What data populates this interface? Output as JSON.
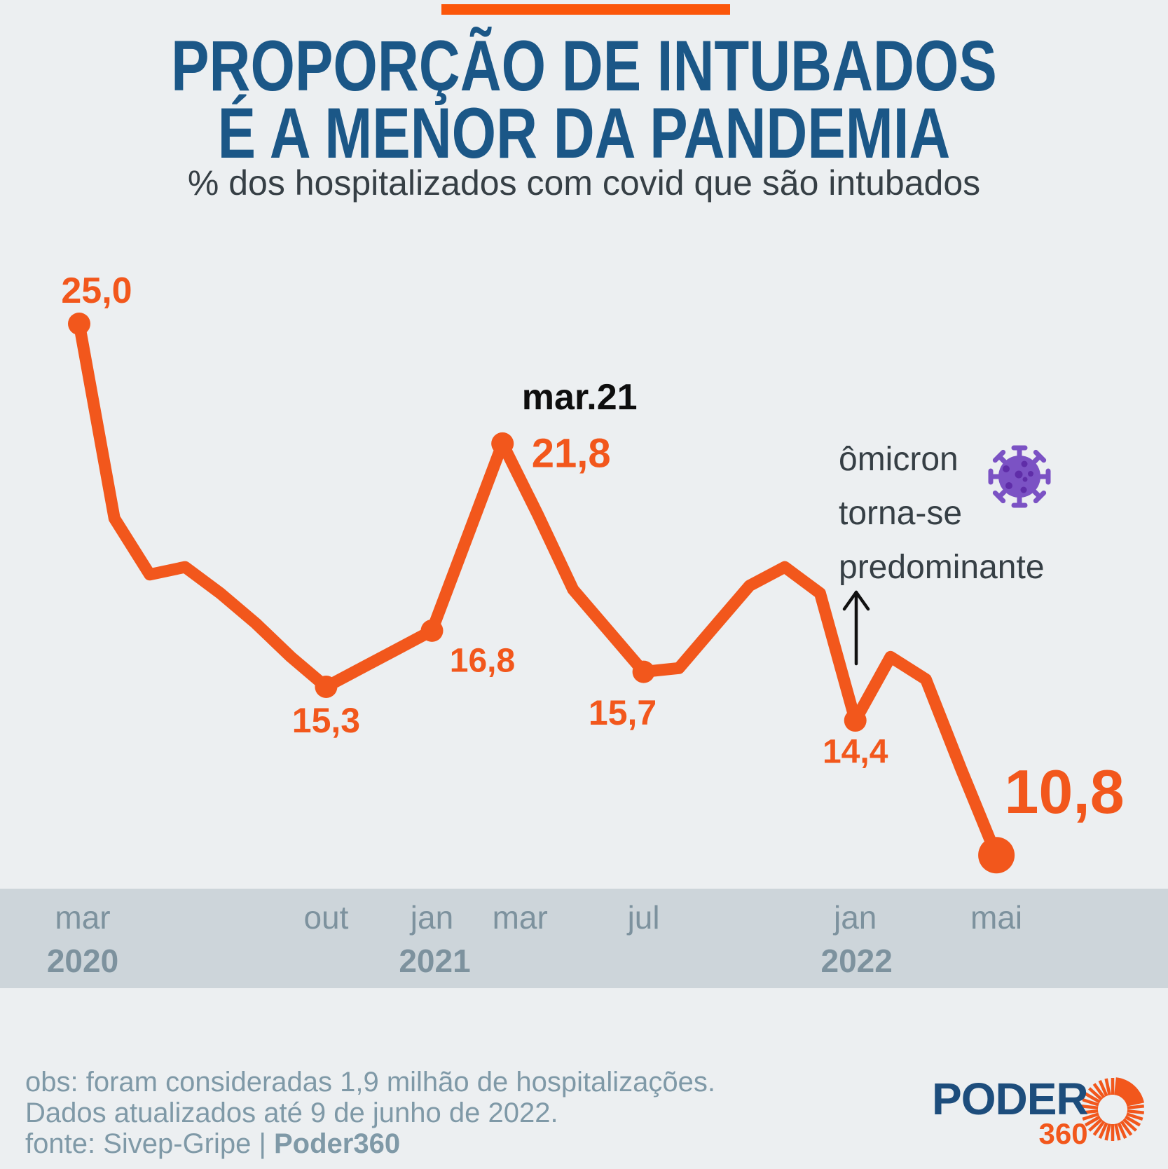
{
  "chart_data": {
    "type": "line",
    "title_lines": [
      "PROPORÇÃO DE INTUBADOS",
      "É A MENOR DA PANDEMIA"
    ],
    "subtitle": "% dos hospitalizados com covid que são intubados",
    "ylim": [
      10.8,
      25.0
    ],
    "x": [
      "mar/2020",
      "abr/2020",
      "mai/2020",
      "jun/2020",
      "jul/2020",
      "ago/2020",
      "set/2020",
      "out/2020",
      "nov/2020",
      "dez/2020",
      "jan/2021",
      "fev/2021",
      "mar/2021",
      "abr/2021",
      "mai/2021",
      "jun/2021",
      "jul/2021",
      "ago/2021",
      "set/2021",
      "out/2021",
      "nov/2021",
      "dez/2021",
      "jan/2022",
      "fev/2022",
      "mar/2022",
      "abr/2022",
      "mai/2022"
    ],
    "values": [
      25.0,
      19.8,
      18.3,
      18.5,
      17.8,
      17.0,
      16.1,
      15.3,
      15.8,
      16.3,
      16.8,
      19.3,
      21.8,
      19.9,
      17.9,
      16.8,
      15.7,
      15.8,
      16.9,
      18.0,
      18.5,
      17.8,
      14.4,
      16.1,
      15.5,
      13.1,
      10.8
    ],
    "labeled_points": [
      {
        "index": 0,
        "label": "25,0"
      },
      {
        "index": 7,
        "label": "15,3"
      },
      {
        "index": 10,
        "label": "16,8"
      },
      {
        "index": 12,
        "label": "21,8",
        "callout": "mar.21"
      },
      {
        "index": 16,
        "label": "15,7"
      },
      {
        "index": 22,
        "label": "14,4"
      },
      {
        "index": 26,
        "label": "10,8"
      }
    ],
    "axis_ticks": [
      {
        "index": 0,
        "label": "mar"
      },
      {
        "index": 7,
        "label": "out"
      },
      {
        "index": 10,
        "label": "jan"
      },
      {
        "index": 12,
        "label": "mar"
      },
      {
        "index": 16,
        "label": "jul"
      },
      {
        "index": 22,
        "label": "jan"
      },
      {
        "index": 26,
        "label": "mai"
      }
    ],
    "year_ticks": [
      {
        "index": 0,
        "label": "2020"
      },
      {
        "index": 10,
        "label": "2021"
      },
      {
        "index": 22,
        "label": "2022"
      }
    ],
    "annotation": {
      "lines": [
        "ômicron",
        "torna-se",
        "predominante"
      ]
    }
  },
  "footer": {
    "line1": "obs: foram consideradas 1,9 milhão de hospitalizações.",
    "line2": "Dados atualizados até 9 de junho de 2022.",
    "line3_prefix": "fonte: Sivep-Gripe | ",
    "line3_bold": "Poder360"
  },
  "logo": {
    "name": "PODER",
    "suffix": "360"
  },
  "colors": {
    "background": "#eceff1",
    "accent": "#f2571c",
    "bar": "#fb560a",
    "title_blue": "#1b5787",
    "dark_text": "#363f45",
    "axis_band": "#cdd5da",
    "axis_text": "#7d929e",
    "footer_text": "#7f99a7",
    "virus_purple": "#7b52c4",
    "virus_spots": "#5f2da8",
    "arrow_black": "#111111",
    "logo_blue": "#1d4d7c"
  }
}
